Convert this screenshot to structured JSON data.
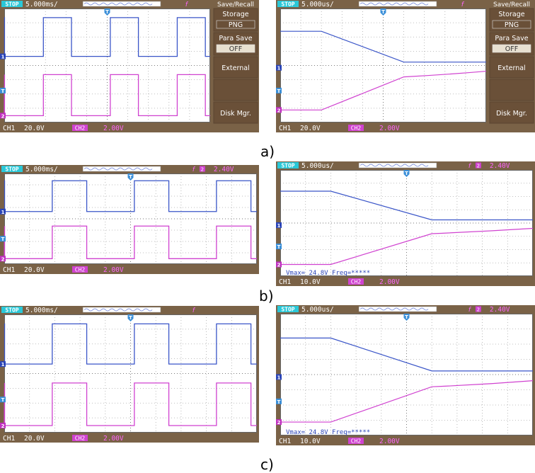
{
  "figure_labels": [
    "a)",
    "b)",
    "c)"
  ],
  "screens": [
    {
      "id": "a-left",
      "status": "STOP",
      "timebase": "5.000ms/",
      "trigger_source": "f",
      "trigger_level": "",
      "ch1_label": "CH1",
      "ch1_scale": "20.0V",
      "ch2_label": "CH2",
      "ch2_scale": "2.00V",
      "measure_text": "",
      "menu": {
        "title": "Save/Recall",
        "items": [
          "Storage",
          "PNG",
          "Para Save",
          "OFF",
          "External",
          "",
          "Disk Mgr."
        ]
      },
      "colors": {
        "ch1": "#3a55c8",
        "ch2": "#d042d0",
        "screen": "#ffffff",
        "bezel": "#7a6247"
      }
    },
    {
      "id": "a-right",
      "status": "STOP",
      "timebase": "5.000us/",
      "trigger_source": "f",
      "trigger_level": "",
      "ch1_label": "CH1",
      "ch1_scale": "20.0V",
      "ch2_label": "CH2",
      "ch2_scale": "2.00V",
      "measure_text": "",
      "menu": {
        "title": "Save/Recall",
        "items": [
          "Storage",
          "PNG",
          "Para Save",
          "OFF",
          "External",
          "",
          "Disk Mgr."
        ]
      },
      "colors": {
        "ch1": "#3a55c8",
        "ch2": "#d042d0",
        "screen": "#ffffff",
        "bezel": "#7a6247"
      }
    },
    {
      "id": "b-left",
      "status": "STOP",
      "timebase": "5.000ms/",
      "trigger_source": "f",
      "trigger_level": "2.40V",
      "ch1_label": "CH1",
      "ch1_scale": "20.0V",
      "ch2_label": "CH2",
      "ch2_scale": "2.00V",
      "measure_text": "",
      "menu": null,
      "colors": {
        "ch1": "#3a55c8",
        "ch2": "#d042d0",
        "screen": "#ffffff",
        "bezel": "#7a6247"
      }
    },
    {
      "id": "b-right",
      "status": "STOP",
      "timebase": "5.000us/",
      "trigger_source": "f",
      "trigger_level": "2.40V",
      "ch1_label": "CH1",
      "ch1_scale": "10.0V",
      "ch2_label": "CH2",
      "ch2_scale": "2.00V",
      "measure_text": "Vmax= 24.8V      Freq=*****",
      "menu": null,
      "colors": {
        "ch1": "#3a55c8",
        "ch2": "#d042d0",
        "screen": "#ffffff",
        "bezel": "#7a6247"
      }
    },
    {
      "id": "c-left",
      "status": "STOP",
      "timebase": "5.000ms/",
      "trigger_source": "f",
      "trigger_level": "",
      "ch1_label": "CH1",
      "ch1_scale": "20.0V",
      "ch2_label": "CH2",
      "ch2_scale": "2.00V",
      "measure_text": "",
      "menu": null,
      "colors": {
        "ch1": "#3a55c8",
        "ch2": "#d042d0",
        "screen": "#ffffff",
        "bezel": "#7a6247"
      }
    },
    {
      "id": "c-right",
      "status": "STOP",
      "timebase": "5.000us/",
      "trigger_source": "f",
      "trigger_level": "2.40V",
      "ch1_label": "CH1",
      "ch1_scale": "10.0V",
      "ch2_label": "CH2",
      "ch2_scale": "2.00V",
      "measure_text": "Vmax= 24.8V      Freq=*****",
      "menu": null,
      "colors": {
        "ch1": "#3a55c8",
        "ch2": "#d042d0",
        "screen": "#ffffff",
        "bezel": "#7a6247"
      }
    }
  ]
}
